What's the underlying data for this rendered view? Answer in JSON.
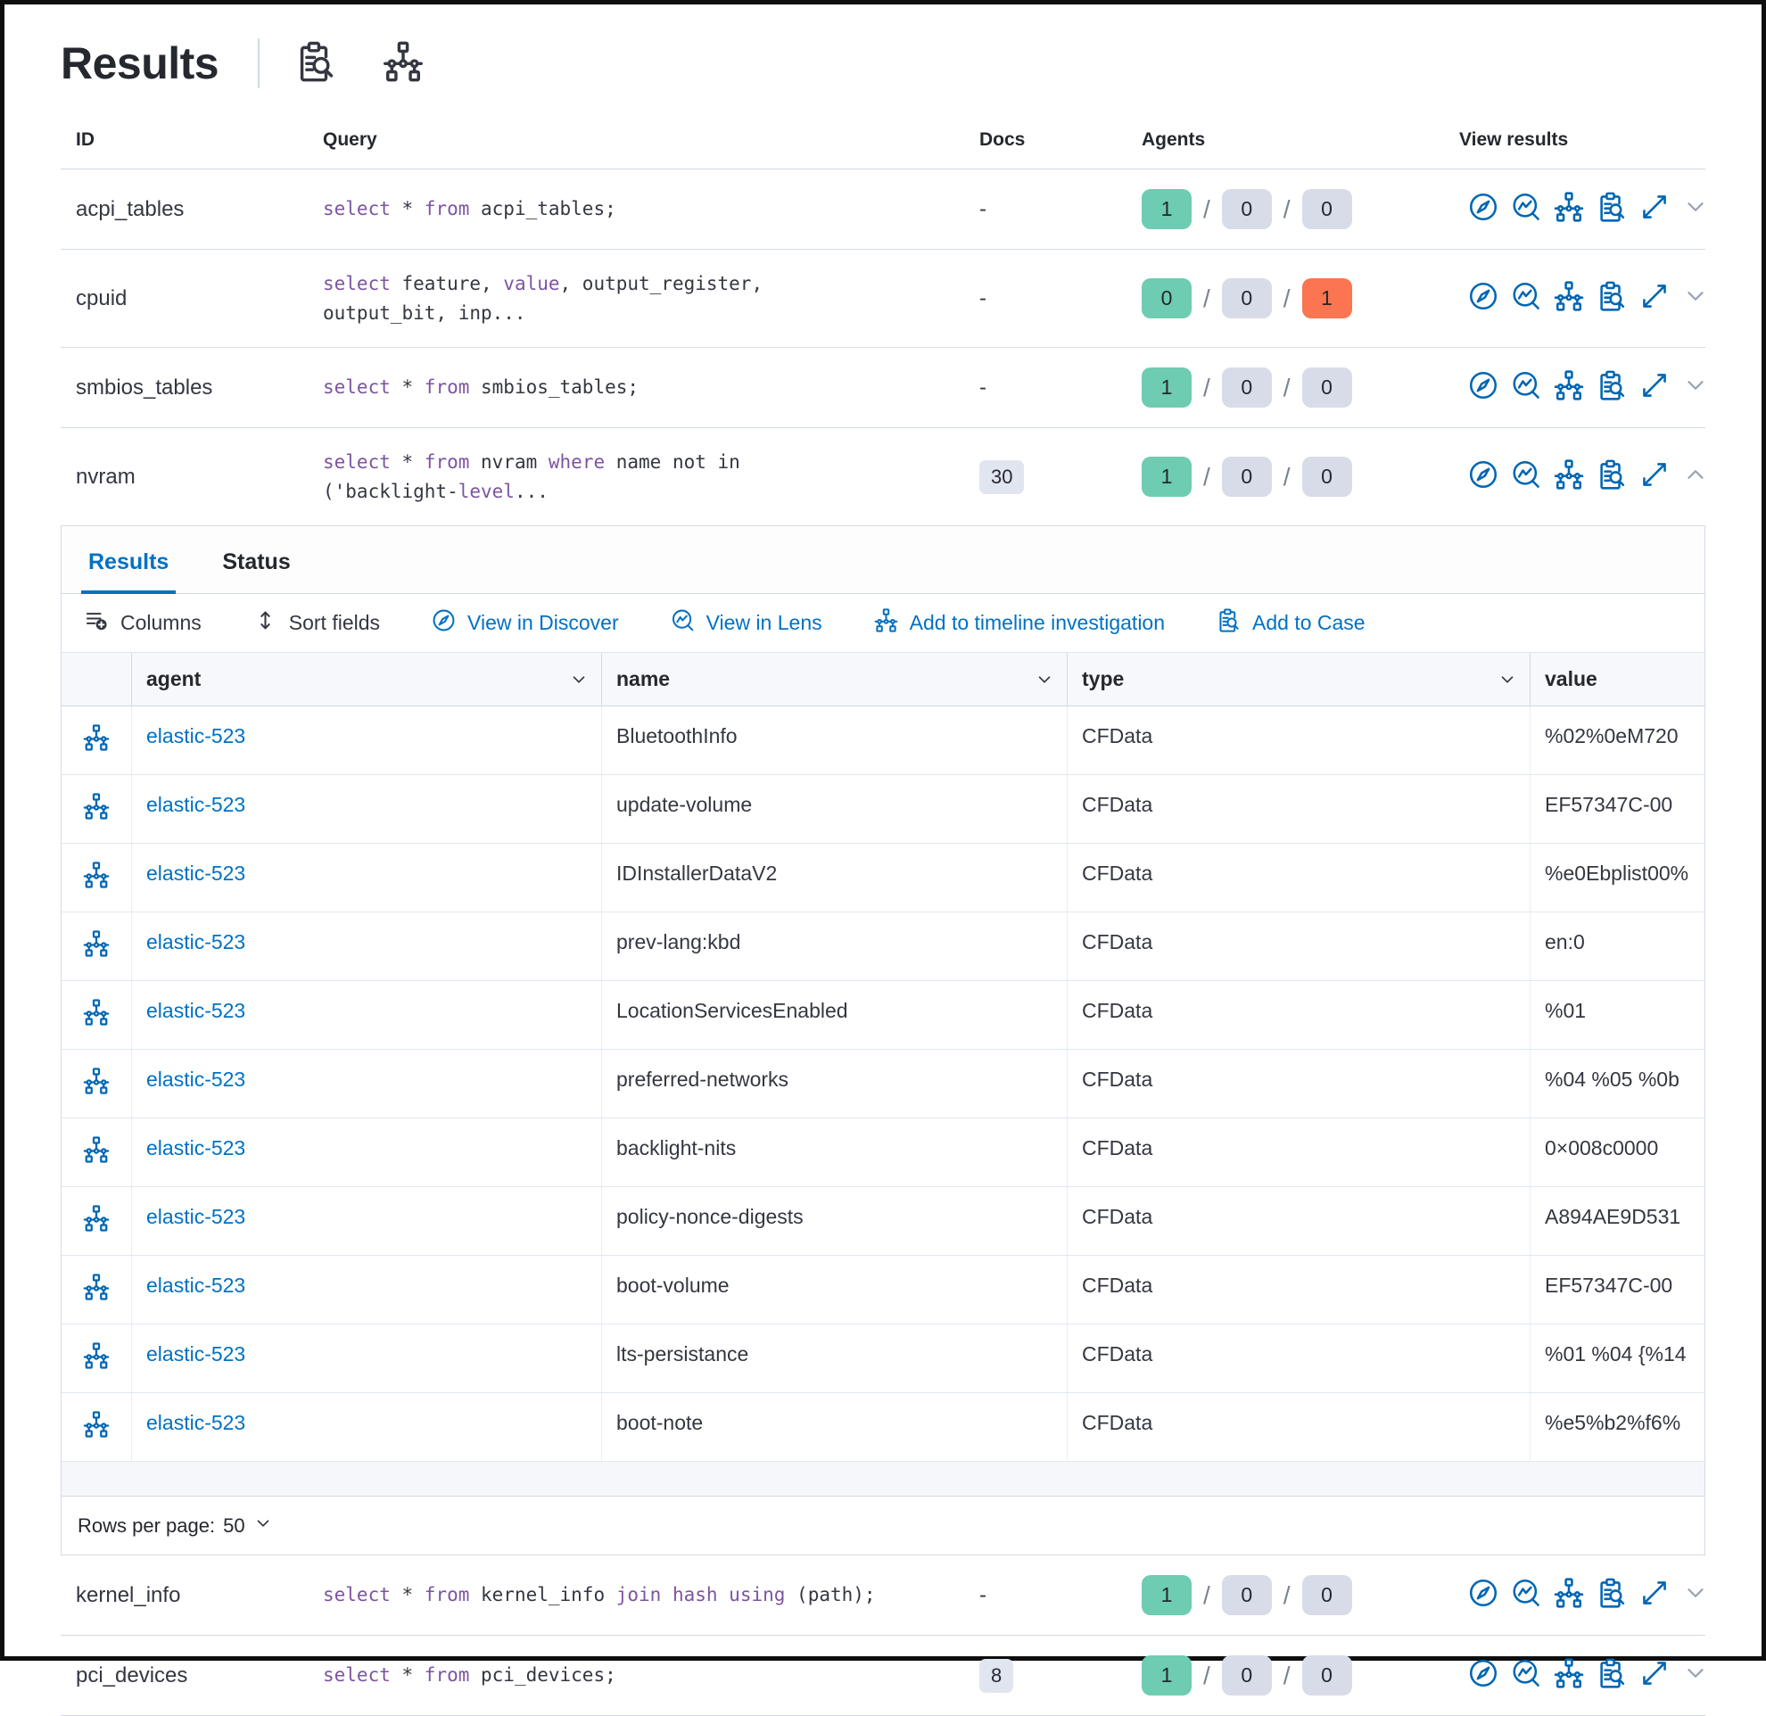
{
  "colors": {
    "accent_blue": "#0071c3",
    "icon_blue": "#0066b3",
    "keyword_purple": "#7c54a2",
    "badge_success": "#6dccb1",
    "badge_neutral": "#d8dce8",
    "badge_danger": "#fa7550"
  },
  "header": {
    "title": "Results"
  },
  "table": {
    "headers": {
      "id": "ID",
      "query": "Query",
      "docs": "Docs",
      "agents": "Agents",
      "view_results": "View results"
    },
    "agents_separator": "/",
    "rows_top": [
      {
        "id": "acpi_tables",
        "query": [
          {
            "t": "select",
            "k": true
          },
          {
            "t": " * "
          },
          {
            "t": "from",
            "k": true
          },
          {
            "t": " acpi_tables;"
          }
        ],
        "docs_plain": "-",
        "docs_badge": "",
        "agents": [
          {
            "value": "1",
            "tone": "success"
          },
          {
            "value": "0",
            "tone": "neutral"
          },
          {
            "value": "0",
            "tone": "neutral"
          }
        ],
        "chevron": "down"
      },
      {
        "id": "cpuid",
        "query": [
          {
            "t": "select",
            "k": true
          },
          {
            "t": " feature, "
          },
          {
            "t": "value",
            "k": true
          },
          {
            "t": ", output_register,\noutput_bit, inp..."
          }
        ],
        "docs_plain": "-",
        "docs_badge": "",
        "agents": [
          {
            "value": "0",
            "tone": "success"
          },
          {
            "value": "0",
            "tone": "neutral"
          },
          {
            "value": "1",
            "tone": "danger"
          }
        ],
        "chevron": "down"
      },
      {
        "id": "smbios_tables",
        "query": [
          {
            "t": "select",
            "k": true
          },
          {
            "t": " * "
          },
          {
            "t": "from",
            "k": true
          },
          {
            "t": " smbios_tables;"
          }
        ],
        "docs_plain": "-",
        "docs_badge": "",
        "agents": [
          {
            "value": "1",
            "tone": "success"
          },
          {
            "value": "0",
            "tone": "neutral"
          },
          {
            "value": "0",
            "tone": "neutral"
          }
        ],
        "chevron": "down"
      },
      {
        "id": "nvram",
        "query": [
          {
            "t": "select",
            "k": true
          },
          {
            "t": " * "
          },
          {
            "t": "from",
            "k": true
          },
          {
            "t": " nvram "
          },
          {
            "t": "where",
            "k": true
          },
          {
            "t": " name not in\n('backlight-"
          },
          {
            "t": "level",
            "k": true
          },
          {
            "t": "..."
          }
        ],
        "docs_plain": "",
        "docs_badge": "30",
        "agents": [
          {
            "value": "1",
            "tone": "success"
          },
          {
            "value": "0",
            "tone": "neutral"
          },
          {
            "value": "0",
            "tone": "neutral"
          }
        ],
        "chevron": "up"
      }
    ],
    "rows_bottom": [
      {
        "id": "kernel_info",
        "query": [
          {
            "t": "select",
            "k": true
          },
          {
            "t": " * "
          },
          {
            "t": "from",
            "k": true
          },
          {
            "t": " kernel_info "
          },
          {
            "t": "join hash using",
            "k": true
          },
          {
            "t": " (path);"
          }
        ],
        "docs_plain": "-",
        "docs_badge": "",
        "agents": [
          {
            "value": "1",
            "tone": "success"
          },
          {
            "value": "0",
            "tone": "neutral"
          },
          {
            "value": "0",
            "tone": "neutral"
          }
        ],
        "chevron": "down"
      },
      {
        "id": "pci_devices",
        "query": [
          {
            "t": "select",
            "k": true
          },
          {
            "t": " * "
          },
          {
            "t": "from",
            "k": true
          },
          {
            "t": " pci_devices;"
          }
        ],
        "docs_plain": "",
        "docs_badge": "8",
        "agents": [
          {
            "value": "1",
            "tone": "success"
          },
          {
            "value": "0",
            "tone": "neutral"
          },
          {
            "value": "0",
            "tone": "neutral"
          }
        ],
        "chevron": "down"
      }
    ]
  },
  "panel": {
    "tabs": [
      {
        "label": "Results",
        "state": "active"
      },
      {
        "label": "Status",
        "state": ""
      }
    ],
    "toolbar": {
      "columns": "Columns",
      "sort_fields": "Sort fields",
      "view_in_discover": "View in Discover",
      "view_in_lens": "View in Lens",
      "add_to_timeline": "Add to timeline investigation",
      "add_to_case": "Add to Case"
    },
    "grid": {
      "headers": [
        {
          "label": "agent",
          "caret": true
        },
        {
          "label": "name",
          "caret": true
        },
        {
          "label": "type",
          "caret": true
        },
        {
          "label": "value",
          "caret": false
        }
      ],
      "rows": [
        {
          "agent": "elastic-523",
          "name": "BluetoothInfo",
          "type": "CFData",
          "value": "%02%0eM720"
        },
        {
          "agent": "elastic-523",
          "name": "update-volume",
          "type": "CFData",
          "value": "EF57347C-00"
        },
        {
          "agent": "elastic-523",
          "name": "IDInstallerDataV2",
          "type": "CFData",
          "value": "%e0Ebplist00%"
        },
        {
          "agent": "elastic-523",
          "name": "prev-lang:kbd",
          "type": "CFData",
          "value": "en:0"
        },
        {
          "agent": "elastic-523",
          "name": "LocationServicesEnabled",
          "type": "CFData",
          "value": "%01"
        },
        {
          "agent": "elastic-523",
          "name": "preferred-networks",
          "type": "CFData",
          "value": "%04 %05 %0b"
        },
        {
          "agent": "elastic-523",
          "name": "backlight-nits",
          "type": "CFData",
          "value": "0×008c0000"
        },
        {
          "agent": "elastic-523",
          "name": "policy-nonce-digests",
          "type": "CFData",
          "value": "A894AE9D531"
        },
        {
          "agent": "elastic-523",
          "name": "boot-volume",
          "type": "CFData",
          "value": "EF57347C-00"
        },
        {
          "agent": "elastic-523",
          "name": "lts-persistance",
          "type": "CFData",
          "value": "%01 %04 {%14"
        },
        {
          "agent": "elastic-523",
          "name": "boot-note",
          "type": "CFData",
          "value": "%e5%b2%f6%"
        }
      ],
      "footer": {
        "rows_per_page": "Rows per page:",
        "page_size": "50"
      }
    }
  }
}
